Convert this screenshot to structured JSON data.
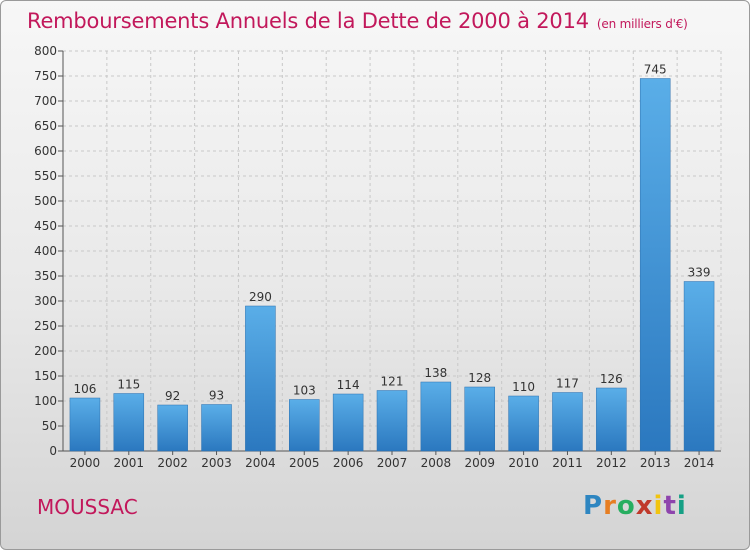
{
  "header": {
    "title": "Remboursements Annuels de la Dette de 2000 à 2014",
    "unit": "(en milliers d'€)"
  },
  "commune": "MOUSSAC",
  "logo": {
    "letters": [
      "P",
      "r",
      "o",
      "x",
      "i",
      "t",
      "i"
    ]
  },
  "chart_data": {
    "type": "bar",
    "title": "Remboursements Annuels de la Dette de 2000 à 2014",
    "xlabel": "",
    "ylabel": "",
    "categories": [
      "2000",
      "2001",
      "2002",
      "2003",
      "2004",
      "2005",
      "2006",
      "2007",
      "2008",
      "2009",
      "2010",
      "2011",
      "2012",
      "2013",
      "2014"
    ],
    "values": [
      106,
      115,
      92,
      93,
      290,
      103,
      114,
      121,
      138,
      128,
      110,
      117,
      126,
      745,
      339
    ],
    "ylim": [
      0,
      800
    ],
    "yticks": [
      0,
      50,
      100,
      150,
      200,
      250,
      300,
      350,
      400,
      450,
      500,
      550,
      600,
      650,
      700,
      750,
      800
    ],
    "grid": true,
    "bar_color": "#4a9fe0",
    "bar_color_dark": "#2f7fc4"
  }
}
